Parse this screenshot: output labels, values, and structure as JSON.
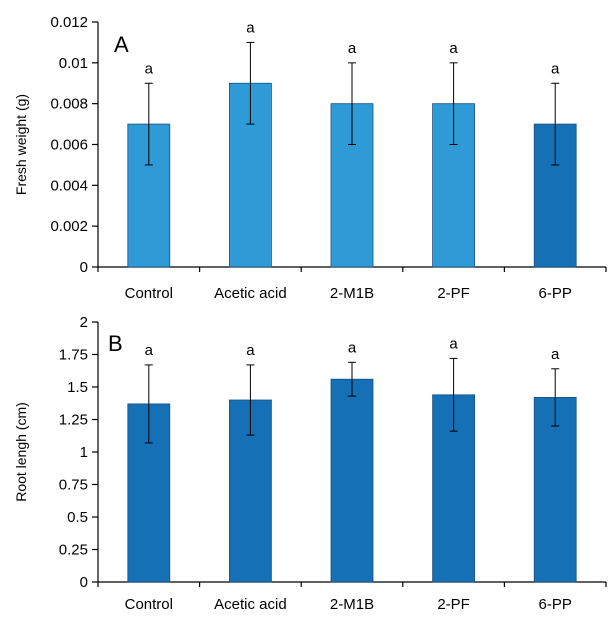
{
  "chart_data": [
    {
      "type": "bar",
      "panel_label": "A",
      "ylabel": "Fresh weight (g)",
      "xlabel": "",
      "categories": [
        "Control",
        "Acetic acid",
        "2-M1B",
        "2-PF",
        "6-PP"
      ],
      "values": [
        0.007,
        0.009,
        0.008,
        0.008,
        0.007
      ],
      "errors": [
        0.002,
        0.002,
        0.002,
        0.002,
        0.002
      ],
      "significance": [
        "a",
        "a",
        "a",
        "a",
        "a"
      ],
      "bar_colors": [
        "#2e9ad6",
        "#2e9ad6",
        "#2e9ad6",
        "#2e9ad6",
        "#1670b5"
      ],
      "ylim": [
        0,
        0.012
      ],
      "yticks": [
        0,
        0.002,
        0.004,
        0.006,
        0.008,
        0.01,
        0.012
      ],
      "ytick_labels": [
        "0",
        "0.002",
        "0.004",
        "0.006",
        "0.008",
        "0.01",
        "0.012"
      ],
      "grid": false,
      "legend": "none"
    },
    {
      "type": "bar",
      "panel_label": "B",
      "ylabel": "Root lengh (cm)",
      "xlabel": "",
      "categories": [
        "Control",
        "Acetic acid",
        "2-M1B",
        "2-PF",
        "6-PP"
      ],
      "values": [
        1.37,
        1.4,
        1.56,
        1.44,
        1.42
      ],
      "errors": [
        0.3,
        0.27,
        0.13,
        0.28,
        0.22
      ],
      "significance": [
        "a",
        "a",
        "a",
        "a",
        "a"
      ],
      "bar_colors": [
        "#1670b5",
        "#1670b5",
        "#1670b5",
        "#1670b5",
        "#1670b5"
      ],
      "ylim": [
        0,
        2
      ],
      "yticks": [
        0,
        0.25,
        0.5,
        0.75,
        1,
        1.25,
        1.5,
        1.75,
        2
      ],
      "ytick_labels": [
        "0",
        "0.25",
        "0.5",
        "0.75",
        "1",
        "1.25",
        "1.5",
        "1.75",
        "2"
      ],
      "grid": false,
      "legend": "none"
    }
  ]
}
